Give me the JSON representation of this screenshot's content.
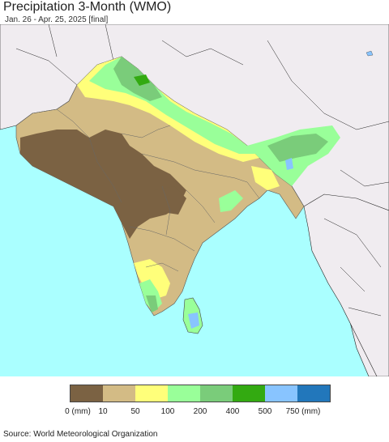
{
  "header": {
    "title": "Precipitation 3-Month (WMO)",
    "subtitle": "Jan. 26 - Apr. 25, 2025 [final]"
  },
  "map": {
    "ocean_color": "#aaffff",
    "land_outside_color": "#f0ecf0",
    "border_color": "#222222"
  },
  "legend": {
    "colors": [
      "#7b6243",
      "#d3bb85",
      "#ffff7a",
      "#99ff99",
      "#7acc7a",
      "#33aa11",
      "#88c4ff",
      "#2277bb"
    ],
    "labels": [
      "0 (mm)",
      "10",
      "50",
      "100",
      "200",
      "400",
      "500",
      "750 (mm)"
    ]
  },
  "footer": {
    "source": "Source: World Meteorological Organization"
  }
}
